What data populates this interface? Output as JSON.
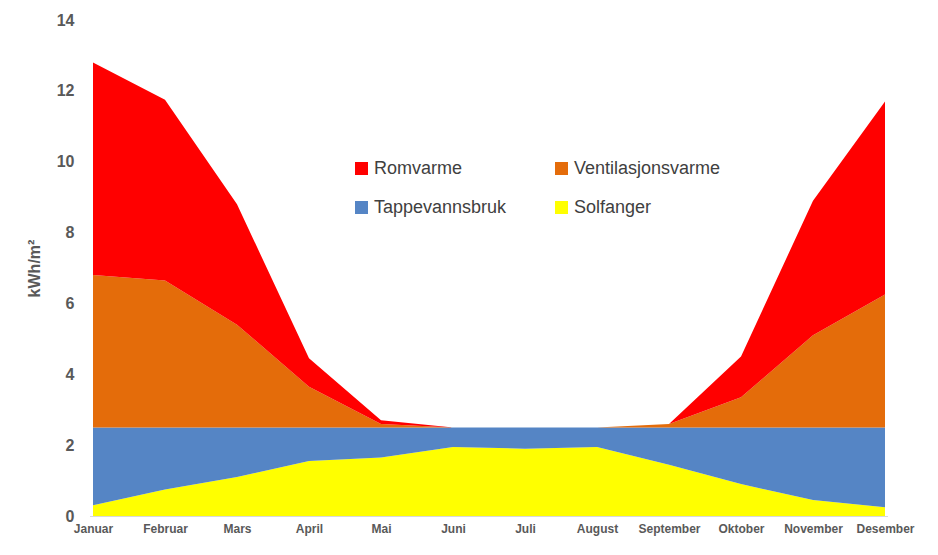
{
  "chart_data": {
    "type": "area",
    "stacked": true,
    "y_label": "kWh/m²",
    "categories": [
      "Januar",
      "Februar",
      "Mars",
      "April",
      "Mai",
      "Juni",
      "Juli",
      "August",
      "September",
      "Oktober",
      "November",
      "Desember"
    ],
    "series": [
      {
        "name": "Romvarme",
        "color": "#ff0000",
        "values": [
          6.0,
          5.1,
          3.4,
          0.8,
          0.1,
          0,
          0,
          0,
          0,
          1.15,
          3.8,
          5.45
        ]
      },
      {
        "name": "Ventilasjonsvarme",
        "color": "#e46c0a",
        "values": [
          4.3,
          4.15,
          2.9,
          1.15,
          0.1,
          0,
          0,
          0,
          0.1,
          0.85,
          2.6,
          3.75
        ]
      },
      {
        "name": "Tappevannsbruk",
        "color": "#5585c5",
        "values": [
          2.2,
          1.75,
          1.4,
          0.95,
          0.85,
          0.55,
          0.6,
          0.55,
          1.05,
          1.6,
          2.05,
          2.25
        ]
      },
      {
        "name": "Solfanger",
        "color": "#ffff00",
        "values": [
          0.3,
          0.75,
          1.1,
          1.55,
          1.65,
          1.95,
          1.9,
          1.95,
          1.45,
          0.9,
          0.45,
          0.25
        ]
      }
    ],
    "ylim": [
      0,
      14
    ],
    "yticks": [
      0,
      2,
      4,
      6,
      8,
      10,
      12,
      14
    ],
    "grid": false,
    "legend": "top"
  }
}
